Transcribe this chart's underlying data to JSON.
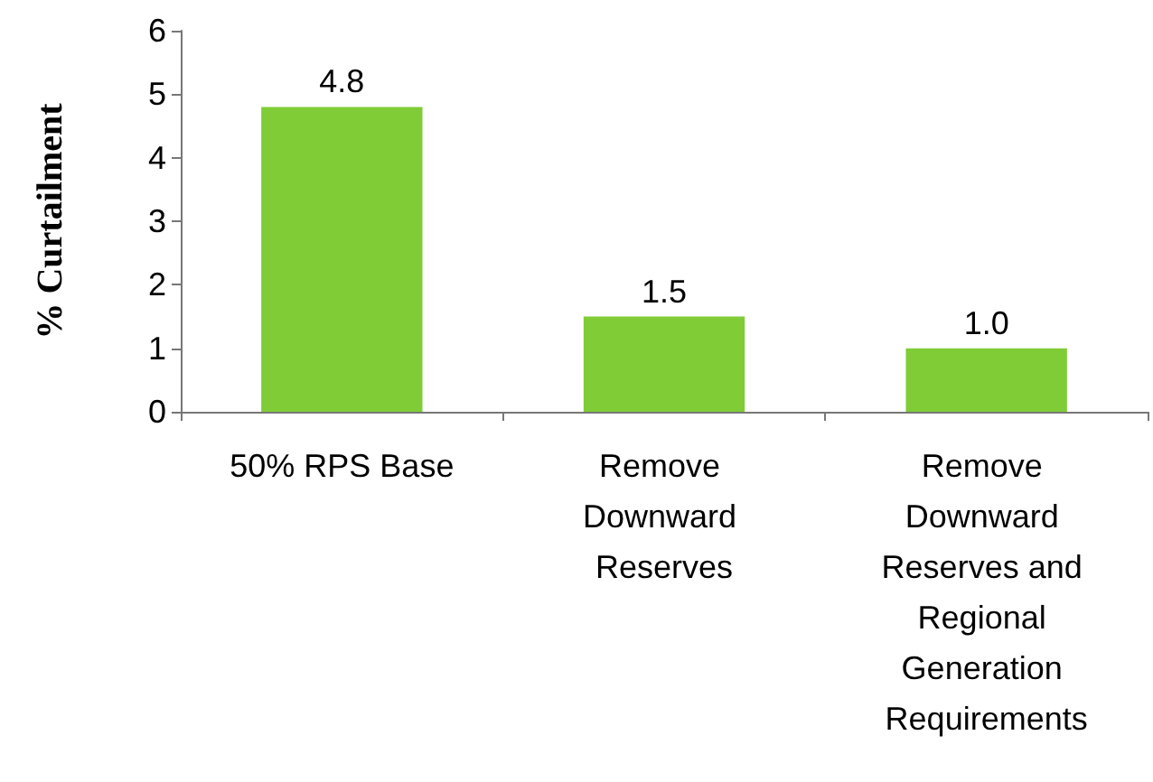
{
  "chart_data": {
    "type": "bar",
    "ylabel": "% Curtailment",
    "categories": [
      "50% RPS Base",
      "Remove Downward Reserves",
      "Remove Downward Reserves and Regional Generation Requirements"
    ],
    "values": [
      4.8,
      1.5,
      1.0
    ],
    "value_labels": [
      "4.8",
      "1.5",
      "1.0"
    ],
    "color": "#7fcc37",
    "ylim": [
      0,
      6
    ],
    "yticks": [
      0,
      1,
      2,
      3,
      4,
      5,
      6
    ],
    "grid": false
  }
}
